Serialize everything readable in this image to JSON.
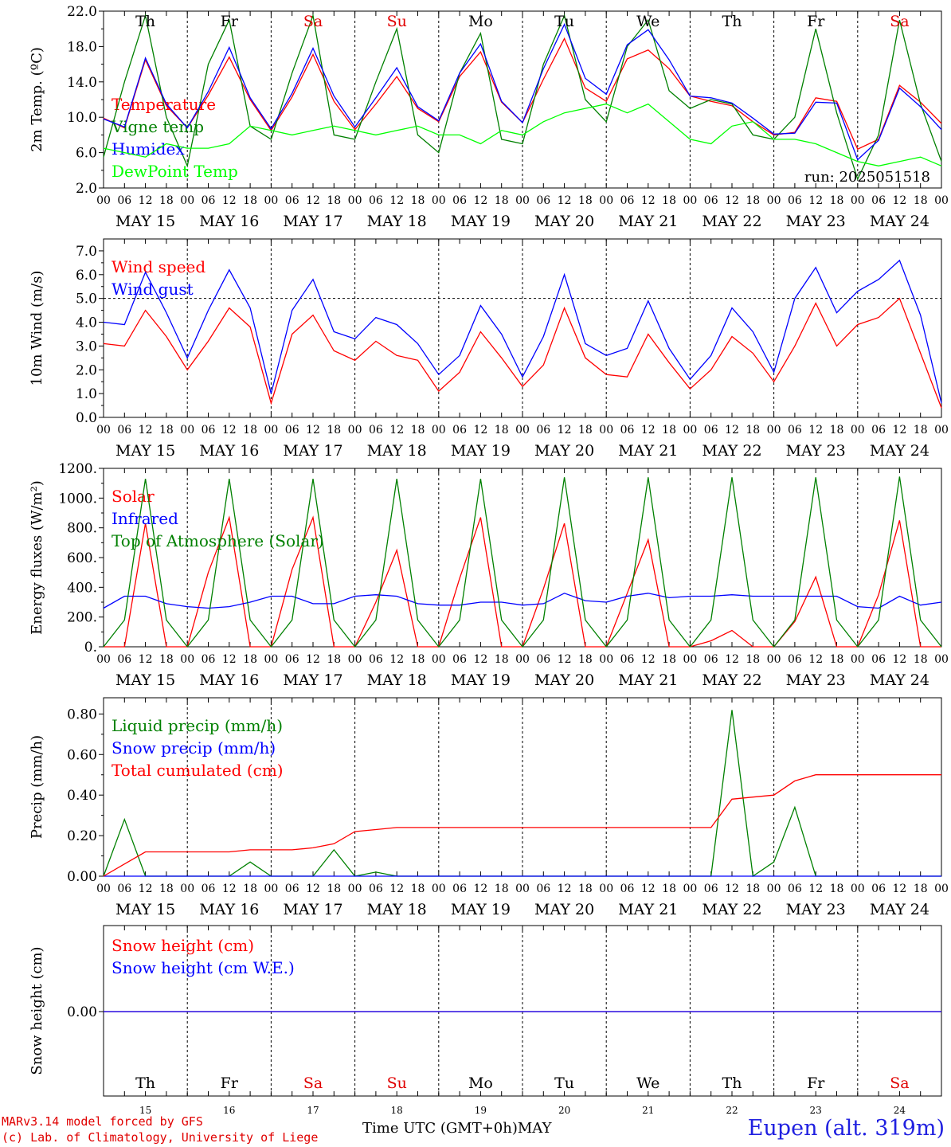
{
  "chart_data": [
    {
      "type": "line",
      "ylabel": "2m Temp. (ºC)",
      "ylim": [
        2,
        22
      ],
      "yticks": [
        "2.0",
        "6.0",
        "10.0",
        "14.0",
        "18.0",
        "22.0"
      ],
      "yticks_values": [
        2,
        6,
        10,
        14,
        18,
        22
      ],
      "x_hours": [
        0,
        6,
        12,
        18,
        24,
        30,
        36,
        42,
        48,
        54,
        60,
        66,
        72,
        78,
        84,
        90,
        96,
        102,
        108,
        114,
        120,
        126,
        132,
        138,
        144,
        150,
        156,
        162,
        168,
        174,
        180,
        186,
        192,
        198,
        204,
        210,
        216,
        222,
        228,
        234,
        240
      ],
      "annotation": "run: 2025051518",
      "series": [
        {
          "name": "Temperature",
          "color": "#ff0000",
          "values": [
            9.9,
            8.8,
            16.5,
            11.3,
            8.8,
            12.5,
            16.8,
            12.0,
            8.5,
            12.3,
            17.1,
            11.8,
            8.6,
            11.5,
            14.6,
            11.0,
            9.5,
            14.6,
            17.4,
            11.7,
            9.4,
            14.3,
            18.9,
            13.3,
            11.8,
            16.6,
            17.6,
            15.5,
            12.4,
            11.8,
            11.3,
            9.5,
            8.0,
            8.3,
            12.2,
            11.8,
            6.4,
            7.5,
            13.6,
            11.7,
            9.3
          ]
        },
        {
          "name": "Vigne temp",
          "color": "#008000",
          "values": [
            5.5,
            14.0,
            21.5,
            10.0,
            4.5,
            16.0,
            21.0,
            9.0,
            7.5,
            15.0,
            21.5,
            8.0,
            7.5,
            14.0,
            20.0,
            8.0,
            6.0,
            15.0,
            19.5,
            7.5,
            7.0,
            16.0,
            21.5,
            12.0,
            9.5,
            18.0,
            21.0,
            13.0,
            11.0,
            12.0,
            11.5,
            8.0,
            7.5,
            10.0,
            20.0,
            10.5,
            3.0,
            8.0,
            21.0,
            11.5,
            5.0
          ]
        },
        {
          "name": "Humidex",
          "color": "#0000ff",
          "values": [
            9.8,
            8.9,
            16.7,
            11.5,
            8.8,
            12.9,
            17.9,
            12.2,
            8.7,
            12.7,
            17.8,
            12.4,
            8.9,
            12.2,
            15.6,
            11.2,
            9.6,
            15.0,
            18.3,
            11.8,
            9.4,
            15.5,
            20.5,
            14.4,
            12.6,
            18.2,
            19.9,
            16.5,
            12.4,
            12.2,
            11.6,
            9.9,
            8.1,
            8.2,
            11.7,
            11.6,
            5.2,
            7.4,
            13.3,
            11.2,
            8.6
          ]
        },
        {
          "name": "DewPoint Temp",
          "color": "#00ff00",
          "values": [
            6.5,
            6.0,
            5.5,
            7.0,
            6.5,
            6.5,
            7.0,
            9.0,
            8.5,
            8.0,
            8.5,
            9.0,
            8.5,
            8.0,
            8.5,
            9.0,
            8.0,
            8.0,
            7.0,
            8.5,
            8.0,
            9.5,
            10.5,
            11.0,
            11.5,
            10.5,
            11.5,
            9.5,
            7.5,
            7.0,
            9.0,
            9.5,
            7.5,
            7.5,
            7.0,
            6.0,
            5.0,
            4.5,
            5.0,
            5.5,
            4.5
          ]
        }
      ]
    },
    {
      "type": "line",
      "ylabel": "10m Wind (m/s)",
      "ylim": [
        0,
        7.5
      ],
      "yticks": [
        "0.0",
        "1.0",
        "2.0",
        "3.0",
        "4.0",
        "5.0",
        "6.0",
        "7.0"
      ],
      "yticks_values": [
        0,
        1,
        2,
        3,
        4,
        5,
        6,
        7
      ],
      "reference_line": 5.0,
      "x_hours": [
        0,
        6,
        12,
        18,
        24,
        30,
        36,
        42,
        48,
        54,
        60,
        66,
        72,
        78,
        84,
        90,
        96,
        102,
        108,
        114,
        120,
        126,
        132,
        138,
        144,
        150,
        156,
        162,
        168,
        174,
        180,
        186,
        192,
        198,
        204,
        210,
        216,
        222,
        228,
        234,
        240
      ],
      "series": [
        {
          "name": "Wind speed",
          "color": "#ff0000",
          "values": [
            3.1,
            3.0,
            4.5,
            3.4,
            2.0,
            3.2,
            4.6,
            3.8,
            0.6,
            3.5,
            4.3,
            2.8,
            2.4,
            3.2,
            2.6,
            2.4,
            1.1,
            1.9,
            3.6,
            2.5,
            1.3,
            2.2,
            4.6,
            2.5,
            1.8,
            1.7,
            3.5,
            2.3,
            1.2,
            2.0,
            3.4,
            2.7,
            1.5,
            3.0,
            4.8,
            3.0,
            3.9,
            4.2,
            5.0,
            2.7,
            0.4
          ]
        },
        {
          "name": "Wind gust",
          "color": "#0000ff",
          "values": [
            4.0,
            3.9,
            6.1,
            4.4,
            2.5,
            4.5,
            6.2,
            4.6,
            1.0,
            4.5,
            5.8,
            3.6,
            3.3,
            4.2,
            3.9,
            3.1,
            1.8,
            2.6,
            4.7,
            3.5,
            1.7,
            3.4,
            6.0,
            3.1,
            2.6,
            2.9,
            4.9,
            2.9,
            1.6,
            2.6,
            4.6,
            3.6,
            1.9,
            5.0,
            6.3,
            4.4,
            5.3,
            5.8,
            6.6,
            4.3,
            0.6
          ]
        }
      ]
    },
    {
      "type": "line",
      "ylabel": "Energy fluxes (W/m²)",
      "ylim": [
        0,
        1200
      ],
      "yticks": [
        "0.",
        "200.",
        "400.",
        "600.",
        "800.",
        "1000.",
        "1200."
      ],
      "yticks_values": [
        0,
        200,
        400,
        600,
        800,
        1000,
        1200
      ],
      "x_hours": [
        0,
        6,
        12,
        18,
        24,
        30,
        36,
        42,
        48,
        54,
        60,
        66,
        72,
        78,
        84,
        90,
        96,
        102,
        108,
        114,
        120,
        126,
        132,
        138,
        144,
        150,
        156,
        162,
        168,
        174,
        180,
        186,
        192,
        198,
        204,
        210,
        216,
        222,
        228,
        234,
        240
      ],
      "series": [
        {
          "name": "Solar",
          "color": "#ff0000",
          "values": [
            0,
            0,
            830,
            0,
            0,
            500,
            870,
            0,
            0,
            520,
            870,
            0,
            0,
            300,
            650,
            0,
            0,
            460,
            870,
            0,
            0,
            390,
            830,
            0,
            0,
            360,
            720,
            0,
            0,
            40,
            110,
            0,
            0,
            170,
            470,
            0,
            0,
            350,
            850,
            0,
            0
          ]
        },
        {
          "name": "Infrared",
          "color": "#0000ff",
          "values": [
            260,
            340,
            340,
            290,
            270,
            260,
            270,
            300,
            340,
            340,
            290,
            290,
            340,
            350,
            340,
            290,
            280,
            280,
            300,
            300,
            280,
            290,
            360,
            310,
            300,
            340,
            360,
            330,
            340,
            340,
            350,
            340,
            340,
            340,
            340,
            340,
            270,
            260,
            340,
            280,
            300
          ]
        },
        {
          "name": "Top of Atmosphere (Solar)",
          "color": "#008000",
          "values": [
            0,
            180,
            1130,
            180,
            0,
            180,
            1130,
            180,
            0,
            180,
            1130,
            180,
            0,
            180,
            1130,
            180,
            0,
            180,
            1130,
            180,
            0,
            180,
            1140,
            180,
            0,
            180,
            1140,
            180,
            0,
            180,
            1140,
            180,
            0,
            180,
            1140,
            180,
            0,
            180,
            1145,
            180,
            0
          ]
        }
      ]
    },
    {
      "type": "line",
      "ylabel": "Precip (mm/h)",
      "ylim": [
        0,
        0.88
      ],
      "yticks": [
        "0.00",
        "0.20",
        "0.40",
        "0.60",
        "0.80"
      ],
      "yticks_values": [
        0,
        0.2,
        0.4,
        0.6,
        0.8
      ],
      "x_hours": [
        0,
        6,
        12,
        18,
        24,
        30,
        36,
        42,
        48,
        54,
        60,
        66,
        72,
        78,
        84,
        90,
        96,
        102,
        108,
        114,
        120,
        126,
        132,
        138,
        144,
        150,
        156,
        162,
        168,
        174,
        180,
        186,
        192,
        198,
        204,
        210,
        216,
        222,
        228,
        234,
        240
      ],
      "series": [
        {
          "name": "Liquid precip (mm/h)",
          "color": "#008000",
          "values": [
            0,
            0.28,
            0,
            0,
            0,
            0,
            0,
            0.07,
            0,
            0,
            0,
            0.13,
            0,
            0.02,
            0,
            0,
            0,
            0,
            0,
            0,
            0,
            0,
            0,
            0,
            0,
            0,
            0,
            0,
            0,
            0,
            0.82,
            0,
            0.07,
            0.34,
            0,
            0,
            0,
            0,
            0,
            0,
            0
          ]
        },
        {
          "name": "Snow precip (mm/h)",
          "color": "#0000ff",
          "values": [
            0,
            0,
            0,
            0,
            0,
            0,
            0,
            0,
            0,
            0,
            0,
            0,
            0,
            0,
            0,
            0,
            0,
            0,
            0,
            0,
            0,
            0,
            0,
            0,
            0,
            0,
            0,
            0,
            0,
            0,
            0,
            0,
            0,
            0,
            0,
            0,
            0,
            0,
            0,
            0,
            0
          ]
        },
        {
          "name": "Total cumulated (cm)",
          "color": "#ff0000",
          "values": [
            0,
            0.06,
            0.12,
            0.12,
            0.12,
            0.12,
            0.12,
            0.13,
            0.13,
            0.13,
            0.14,
            0.16,
            0.22,
            0.23,
            0.24,
            0.24,
            0.24,
            0.24,
            0.24,
            0.24,
            0.24,
            0.24,
            0.24,
            0.24,
            0.24,
            0.24,
            0.24,
            0.24,
            0.24,
            0.24,
            0.38,
            0.39,
            0.4,
            0.47,
            0.5,
            0.5,
            0.5,
            0.5,
            0.5,
            0.5,
            0.5
          ]
        }
      ]
    },
    {
      "type": "line",
      "ylabel": "Snow height (cm)",
      "yticks": [
        "0.00"
      ],
      "yticks_values": [
        0
      ],
      "x_hours": [
        0,
        240
      ],
      "series": [
        {
          "name": "Snow height (cm)",
          "color": "#ff0000",
          "values": [
            0,
            0
          ]
        },
        {
          "name": "Snow height (cm W.E.)",
          "color": "#0000ff",
          "values": [
            0,
            0
          ]
        }
      ]
    }
  ],
  "time_axis": {
    "hour_labels": [
      "00",
      "06",
      "12",
      "18"
    ],
    "final_hour_label": "00",
    "day_labels": [
      "MAY 15",
      "MAY 16",
      "MAY 17",
      "MAY 18",
      "MAY 19",
      "MAY 20",
      "MAY 21",
      "MAY 22",
      "MAY 23",
      "MAY 24"
    ],
    "weekdays": [
      "Th",
      "Fr",
      "Sa",
      "Su",
      "Mo",
      "Tu",
      "We",
      "Th",
      "Fr",
      "Sa"
    ],
    "weekday_colors": [
      "#000000",
      "#000000",
      "#e00000",
      "#e00000",
      "#000000",
      "#000000",
      "#000000",
      "#000000",
      "#000000",
      "#e00000"
    ],
    "day_numbers": [
      "15",
      "16",
      "17",
      "18",
      "19",
      "20",
      "21",
      "22",
      "23",
      "24"
    ],
    "axis_label": "Time UTC (GMT+0h)",
    "month": "MAY"
  },
  "footer": {
    "credit_line1": "MARv3.14 model forced by GFS",
    "credit_line2": "(c) Lab. of Climatology, University of Liege",
    "station": "Eupen (alt. 319m)"
  }
}
